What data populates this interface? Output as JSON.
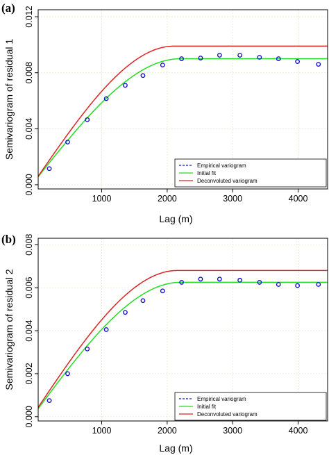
{
  "chart_data": [
    {
      "type": "line",
      "panel_label": "(a)",
      "xlabel": "Lag (m)",
      "ylabel": "Semivariogram of residual 1",
      "xlim": [
        30,
        4450
      ],
      "ylim": [
        -0.0003,
        0.0125
      ],
      "xticks": [
        1000,
        2000,
        3000,
        4000
      ],
      "xtick_labels": [
        "1000",
        "2000",
        "3000",
        "4000"
      ],
      "yticks": [
        0.0,
        0.004,
        0.008,
        0.012
      ],
      "ytick_labels": [
        "0.000",
        "0.004",
        "0.008",
        "0.012"
      ],
      "grid": true,
      "legend_position": "bottom-right",
      "empirical": {
        "name": "Empirical variogram",
        "color": "#1010cc",
        "x": [
          200,
          480,
          780,
          1070,
          1360,
          1630,
          1930,
          2220,
          2510,
          2800,
          3110,
          3410,
          3700,
          3990,
          4310
        ],
        "y": [
          0.00115,
          0.00305,
          0.00465,
          0.00615,
          0.0071,
          0.0078,
          0.00855,
          0.009,
          0.00905,
          0.00925,
          0.00925,
          0.0091,
          0.009,
          0.0088,
          0.0086
        ]
      },
      "series": [
        {
          "name": "Initial fit",
          "color": "#22dd22",
          "model": "spherical",
          "nugget": 0.0004,
          "sill": 0.009,
          "range": 2200
        },
        {
          "name": "Deconvoluted variogram",
          "color": "#dd2222",
          "model": "spherical",
          "nugget": 0.0004,
          "sill": 0.0099,
          "range": 2100
        }
      ]
    },
    {
      "type": "line",
      "panel_label": "(b)",
      "xlabel": "Lag (m)",
      "ylabel": "Semivariogram of residual 2",
      "xlim": [
        30,
        4450
      ],
      "ylim": [
        -0.0002,
        0.0083
      ],
      "xticks": [
        1000,
        2000,
        3000,
        4000
      ],
      "xtick_labels": [
        "1000",
        "2000",
        "3000",
        "4000"
      ],
      "yticks": [
        0.0,
        0.002,
        0.004,
        0.006,
        0.008
      ],
      "ytick_labels": [
        "0.000",
        "0.002",
        "0.004",
        "0.006",
        "0.008"
      ],
      "grid": true,
      "legend_position": "bottom-right",
      "empirical": {
        "name": "Empirical variogram",
        "color": "#1010cc",
        "x": [
          200,
          480,
          780,
          1070,
          1360,
          1630,
          1930,
          2220,
          2510,
          2800,
          3110,
          3410,
          3700,
          3990,
          4310
        ],
        "y": [
          0.00075,
          0.002,
          0.00315,
          0.00405,
          0.00485,
          0.0054,
          0.00585,
          0.00625,
          0.0064,
          0.0064,
          0.00635,
          0.00625,
          0.00615,
          0.0061,
          0.00615
        ]
      },
      "series": [
        {
          "name": "Initial fit",
          "color": "#22dd22",
          "model": "spherical",
          "nugget": 0.00025,
          "sill": 0.00625,
          "range": 2200
        },
        {
          "name": "Deconvoluted variogram",
          "color": "#dd2222",
          "model": "spherical",
          "nugget": 0.0003,
          "sill": 0.0068,
          "range": 2150
        }
      ]
    }
  ]
}
